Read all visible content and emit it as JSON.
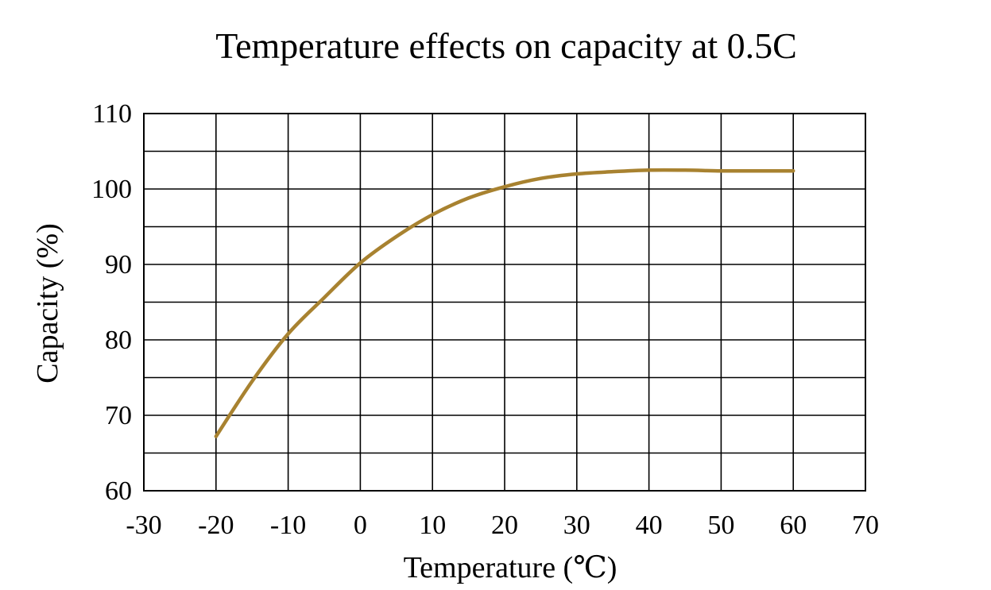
{
  "chart_data": {
    "type": "line",
    "title": "Temperature effects on capacity at 0.5C",
    "xlabel": "Temperature (℃)",
    "ylabel": "Capacity (%)",
    "xlim": [
      -30,
      70
    ],
    "ylim": [
      60,
      110
    ],
    "x_ticks": [
      "-30",
      "-20",
      "-10",
      "0",
      "10",
      "20",
      "30",
      "40",
      "50",
      "60",
      "70"
    ],
    "y_ticks": [
      "60",
      "70",
      "80",
      "90",
      "100",
      "110"
    ],
    "grid": true,
    "legend": "none",
    "series": [
      {
        "color": "#a88230",
        "x": [
          -20,
          -15,
          -10,
          -5,
          0,
          5,
          10,
          15,
          20,
          25,
          30,
          35,
          40,
          45,
          50,
          55,
          60
        ],
        "y": [
          67.2,
          74.5,
          80.8,
          85.6,
          90.2,
          93.7,
          96.6,
          98.8,
          100.3,
          101.4,
          102.0,
          102.3,
          102.5,
          102.5,
          102.4,
          102.4,
          102.4
        ]
      }
    ]
  }
}
